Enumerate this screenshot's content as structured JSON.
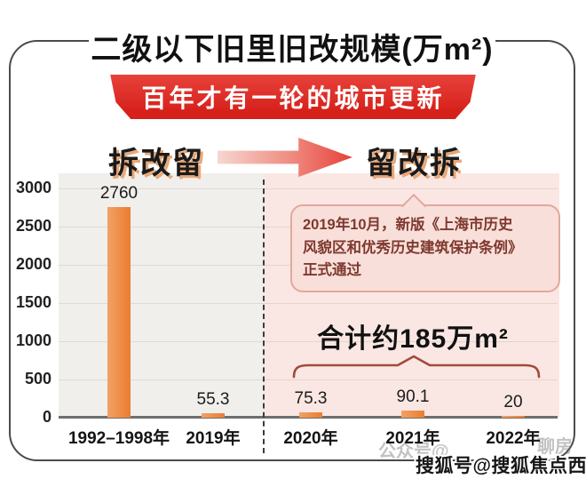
{
  "header": {
    "title": "二级以下旧里旧改规模(万m²)",
    "banner": "百年才有一轮的城市更新"
  },
  "era_labels": {
    "left": "拆改留",
    "right": "留改拆"
  },
  "annotation": {
    "lines": [
      "2019年10月，新版《上海市历史",
      "风貌区和优秀历史建筑保护条例》",
      "正式通过"
    ]
  },
  "total": {
    "label": "合计约185万m²"
  },
  "watermarks": {
    "bold": "搜狐号@搜狐焦点西安站",
    "faint_left": "公众号@",
    "faint_right": "聊房"
  },
  "colors": {
    "bar": "#EC8A45",
    "banner_red": "#D6201A",
    "left_bg": "#F0EFEC",
    "right_bg": "#FAE7E3",
    "annotation_fill": "#F9DFDA",
    "annotation_border": "#E2A89D",
    "annotation_text": "#7E392E",
    "brace": "#A34A39"
  },
  "chart_data": {
    "type": "bar",
    "title": "二级以下旧里旧改规模(万m²)",
    "categories": [
      "1992–1998年",
      "2019年",
      "2020年",
      "2021年",
      "2022年"
    ],
    "values": [
      2760,
      55.3,
      75.3,
      90.1,
      20
    ],
    "xlabel": "",
    "ylabel": "",
    "ylim": [
      0,
      3000
    ],
    "yticks": [
      3000,
      2500,
      2000,
      1500,
      1000,
      500,
      0
    ],
    "grid": true,
    "legend": false,
    "annotations": {
      "left_phase": "拆改留",
      "right_phase": "留改拆",
      "right_phase_total": "合计约185万m²",
      "divider_after_category_index": 1
    }
  }
}
